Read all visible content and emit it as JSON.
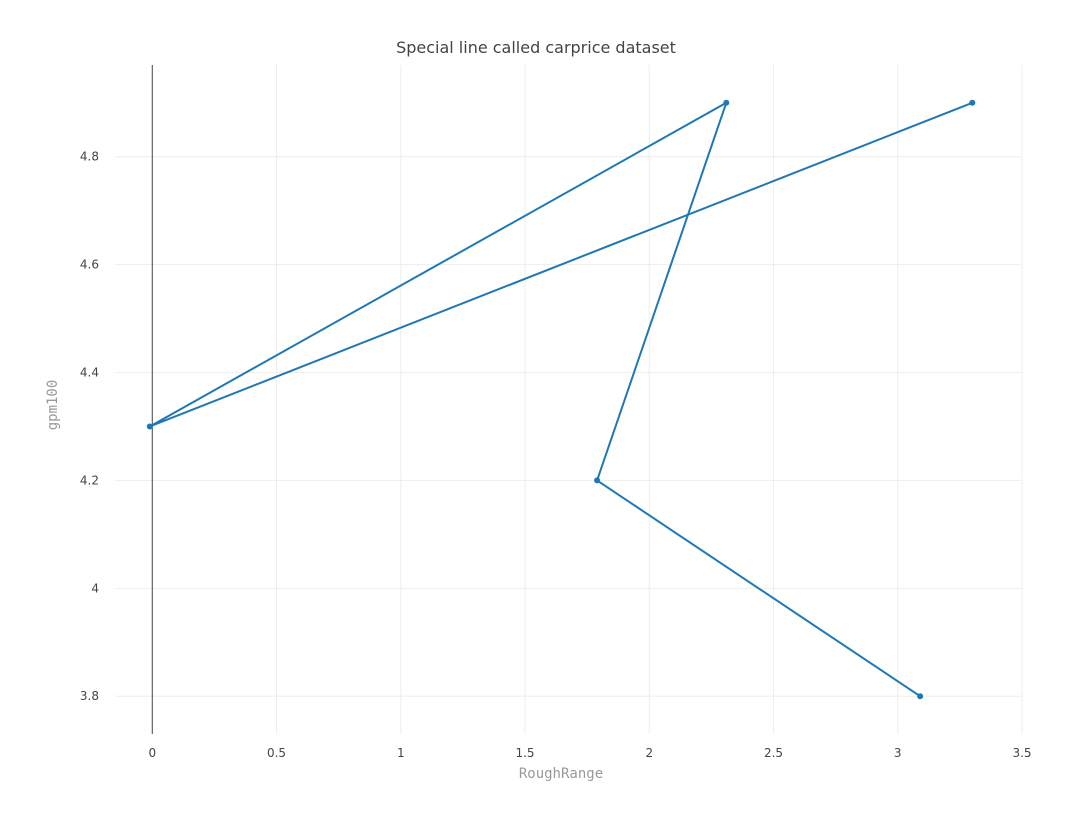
{
  "chart_data": {
    "type": "line",
    "title": "Special line called carprice dataset",
    "xlabel": "RoughRange",
    "ylabel": "gpm100",
    "xlim": [
      -0.15,
      3.5
    ],
    "ylim": [
      3.73,
      4.97
    ],
    "x_ticks": [
      0,
      0.5,
      1,
      1.5,
      2,
      2.5,
      3,
      3.5
    ],
    "x_tick_labels": [
      "0",
      "0.5",
      "1",
      "1.5",
      "2",
      "2.5",
      "3",
      "3.5"
    ],
    "y_ticks": [
      3.8,
      4,
      4.2,
      4.4,
      4.6,
      4.8
    ],
    "y_tick_labels": [
      "3.8",
      "4",
      "4.2",
      "4.4",
      "4.6",
      "4.8"
    ],
    "grid": true,
    "series": [
      {
        "color": "#1f77b4",
        "x": [
          3.3,
          -0.01,
          2.31,
          1.79,
          3.09
        ],
        "y": [
          4.9,
          4.3,
          4.9,
          4.2,
          3.8
        ]
      }
    ]
  }
}
